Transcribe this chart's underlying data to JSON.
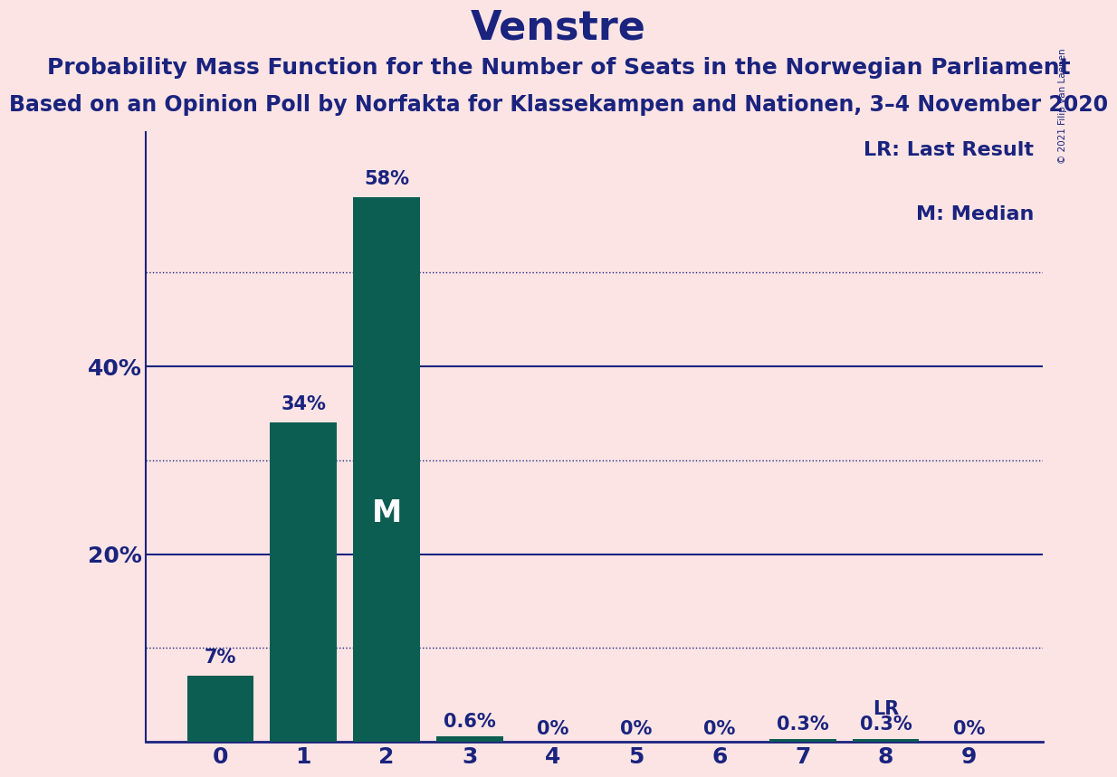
{
  "title": "Venstre",
  "subtitle1": "Probability Mass Function for the Number of Seats in the Norwegian Parliament",
  "subtitle2": "Based on an Opinion Poll by Norfakta for Klassekampen and Nationen, 3–4 November 2020",
  "copyright": "© 2021 Filip van Laenen",
  "categories": [
    0,
    1,
    2,
    3,
    4,
    5,
    6,
    7,
    8,
    9
  ],
  "values": [
    0.07,
    0.34,
    0.58,
    0.006,
    0.0,
    0.0,
    0.0,
    0.003,
    0.003,
    0.0
  ],
  "labels": [
    "7%",
    "34%",
    "58%",
    "0.6%",
    "0%",
    "0%",
    "0%",
    "0.3%",
    "0.3%",
    "0%"
  ],
  "bar_color": "#0d5e52",
  "background_color": "#fce4e4",
  "title_color": "#1a237e",
  "text_color": "#1a237e",
  "solid_line_color": "#1a237e",
  "dotted_line_color": "#1a237e",
  "median_bar": 2,
  "last_result_bar": 8,
  "ylim": [
    0,
    0.65
  ],
  "dotted_lines": [
    0.1,
    0.3,
    0.5
  ],
  "solid_lines": [
    0.2,
    0.4
  ],
  "legend_lr": "LR: Last Result",
  "legend_m": "M: Median",
  "title_fontsize": 32,
  "subtitle1_fontsize": 18,
  "subtitle2_fontsize": 17,
  "label_fontsize": 15,
  "axis_fontsize": 18,
  "legend_fontsize": 16
}
